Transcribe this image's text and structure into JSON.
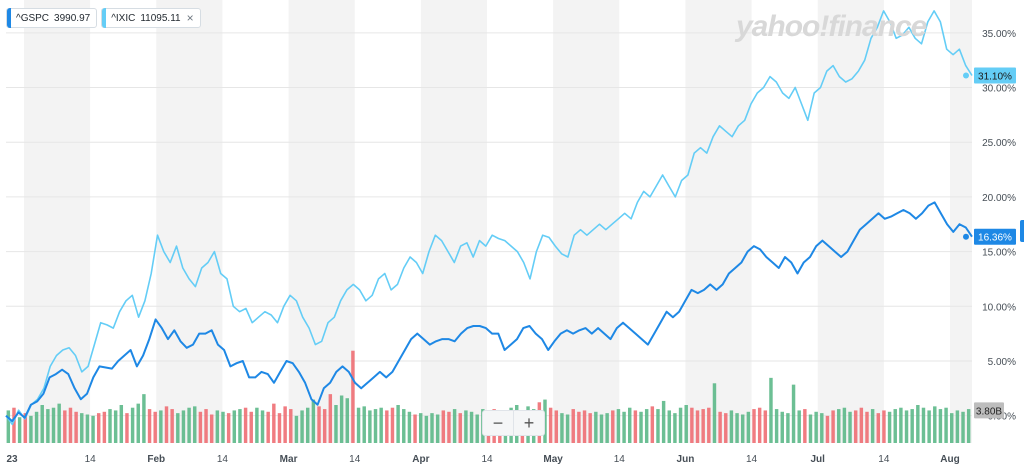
{
  "legend": [
    {
      "symbol": "^GSPC",
      "value": "3990.97",
      "color": "#1e88e5",
      "closable": false
    },
    {
      "symbol": "^IXIC",
      "value": "11095.11",
      "color": "#64cdf6",
      "closable": true,
      "close_label": "×"
    }
  ],
  "watermark": "yahoo!finance",
  "zoom": {
    "minus": "−",
    "plus": "+"
  },
  "chart_data": {
    "type": "line",
    "y_format": "percent",
    "ylim": [
      -2.5,
      38
    ],
    "y_ticks": [
      "0.00%",
      "5.00%",
      "10.00%",
      "15.00%",
      "20.00%",
      "25.00%",
      "30.00%",
      "35.00%"
    ],
    "x_ticks": [
      "23",
      "14",
      "Feb",
      "14",
      "Mar",
      "14",
      "Apr",
      "14",
      "May",
      "14",
      "Jun",
      "14",
      "Jul",
      "14",
      "Aug"
    ],
    "series": [
      {
        "name": "^IXIC",
        "color": "#64cdf6",
        "last_label": "31.10%",
        "values": [
          0.0,
          -0.8,
          0.5,
          -0.3,
          1.0,
          1.5,
          2.5,
          4.5,
          5.5,
          6.0,
          6.2,
          5.5,
          4.0,
          4.5,
          6.5,
          8.5,
          8.3,
          8.0,
          9.5,
          10.5,
          11.0,
          9.0,
          10.5,
          13.0,
          16.5,
          15.0,
          14.0,
          15.5,
          13.5,
          12.5,
          11.8,
          13.5,
          14.0,
          15.0,
          13.0,
          12.5,
          10.0,
          9.5,
          9.8,
          8.5,
          9.0,
          9.5,
          9.2,
          8.5,
          10.0,
          11.0,
          10.5,
          9.0,
          8.0,
          6.5,
          6.8,
          8.5,
          9.0,
          10.5,
          11.5,
          12.0,
          11.5,
          10.5,
          11.0,
          12.5,
          13.0,
          11.5,
          12.0,
          13.5,
          14.5,
          14.0,
          13.0,
          15.0,
          16.5,
          16.0,
          15.0,
          14.0,
          15.5,
          15.8,
          14.5,
          16.0,
          15.5,
          16.5,
          16.2,
          16.0,
          15.5,
          15.0,
          14.0,
          12.5,
          15.0,
          16.5,
          16.3,
          15.5,
          14.8,
          14.5,
          16.5,
          17.0,
          16.5,
          17.0,
          17.5,
          17.0,
          17.5,
          18.0,
          18.5,
          18.0,
          19.5,
          20.5,
          20.0,
          21.0,
          22.0,
          21.0,
          20.0,
          21.5,
          22.0,
          24.0,
          24.5,
          24.0,
          25.5,
          26.5,
          26.0,
          25.5,
          26.5,
          27.0,
          28.5,
          29.5,
          30.0,
          31.0,
          30.5,
          29.5,
          29.0,
          30.0,
          28.5,
          27.0,
          29.5,
          30.0,
          31.5,
          32.0,
          31.0,
          30.5,
          30.8,
          31.5,
          32.5,
          34.5,
          35.5,
          37.0,
          36.0,
          34.5,
          34.8,
          35.5,
          34.5,
          34.0,
          36.0,
          37.0,
          36.0,
          33.5,
          33.0,
          33.5,
          32.0,
          31.1
        ]
      },
      {
        "name": "^GSPC",
        "color": "#1e88e5",
        "last_label": "16.36%",
        "values": [
          0.0,
          -0.5,
          0.3,
          -0.2,
          1.0,
          1.3,
          2.0,
          3.5,
          3.8,
          4.2,
          3.8,
          2.5,
          1.5,
          2.0,
          3.5,
          4.5,
          4.4,
          4.3,
          5.0,
          5.5,
          6.0,
          4.5,
          5.5,
          7.0,
          8.8,
          8.0,
          7.0,
          7.8,
          6.8,
          6.2,
          6.5,
          7.5,
          7.5,
          7.8,
          6.5,
          6.0,
          4.5,
          4.8,
          5.0,
          3.5,
          3.5,
          4.0,
          3.8,
          3.0,
          4.0,
          5.0,
          4.8,
          4.0,
          3.0,
          1.5,
          1.0,
          2.5,
          3.0,
          4.0,
          4.5,
          4.0,
          3.0,
          2.5,
          3.0,
          3.5,
          4.0,
          3.5,
          4.0,
          5.0,
          6.0,
          7.0,
          7.5,
          7.0,
          6.5,
          6.8,
          7.0,
          7.0,
          6.8,
          7.5,
          8.0,
          8.2,
          8.2,
          8.0,
          7.5,
          7.5,
          6.0,
          6.5,
          7.0,
          8.0,
          8.2,
          7.5,
          7.0,
          6.0,
          6.8,
          7.5,
          7.8,
          7.5,
          7.8,
          8.0,
          7.5,
          8.0,
          7.5,
          7.0,
          8.0,
          8.5,
          8.0,
          7.5,
          7.0,
          6.5,
          7.5,
          8.5,
          9.5,
          9.0,
          9.5,
          10.5,
          11.5,
          11.2,
          11.5,
          12.0,
          11.5,
          12.0,
          13.0,
          13.5,
          14.0,
          15.0,
          15.5,
          15.2,
          14.5,
          14.0,
          13.5,
          14.5,
          14.0,
          13.0,
          14.0,
          14.5,
          15.5,
          16.0,
          15.5,
          15.0,
          14.5,
          15.0,
          16.0,
          17.0,
          17.5,
          18.0,
          18.5,
          18.0,
          18.2,
          18.5,
          18.8,
          18.5,
          18.0,
          18.5,
          19.2,
          19.5,
          18.5,
          17.5,
          16.8,
          17.5,
          17.2,
          16.36
        ]
      }
    ],
    "volume": {
      "label": "3.80B",
      "values": [
        2.4,
        2.6,
        1.9,
        2.2,
        2.0,
        2.3,
        2.8,
        2.5,
        2.6,
        2.9,
        2.4,
        2.6,
        2.3,
        2.2,
        2.1,
        2.0,
        2.2,
        2.3,
        2.5,
        2.4,
        2.8,
        2.2,
        2.6,
        2.9,
        3.6,
        2.5,
        2.3,
        2.4,
        2.7,
        2.5,
        2.2,
        2.4,
        2.6,
        2.7,
        2.3,
        2.5,
        2.1,
        2.4,
        2.3,
        2.2,
        2.4,
        2.5,
        2.6,
        2.3,
        2.6,
        2.4,
        2.3,
        2.9,
        2.2,
        2.7,
        2.5,
        2.0,
        2.4,
        2.6,
        3.2,
        2.7,
        2.5,
        3.6,
        2.8,
        3.5,
        3.3,
        6.8,
        2.6,
        2.7,
        2.4,
        2.5,
        2.6,
        2.4,
        2.6,
        2.8,
        2.5,
        2.3,
        2.1,
        2.2,
        2.0,
        2.2,
        2.1,
        2.4,
        2.3,
        2.5,
        2.2,
        2.4,
        2.3,
        2.1,
        2.5,
        2.3,
        2.5,
        2.1,
        2.4,
        2.6,
        2.8,
        2.4,
        2.7,
        2.5,
        3.0,
        3.2,
        2.6,
        2.4,
        2.2,
        2.1,
        2.5,
        2.3,
        2.4,
        2.2,
        2.3,
        2.1,
        2.2,
        2.4,
        2.5,
        2.3,
        2.6,
        2.4,
        2.3,
        2.5,
        2.7,
        2.5,
        3.1,
        2.4,
        2.2,
        2.6,
        2.8,
        2.6,
        2.4,
        2.5,
        2.6,
        4.4,
        2.3,
        2.2,
        2.4,
        2.2,
        2.1,
        2.3,
        2.5,
        2.6,
        2.4,
        4.8,
        2.5,
        2.3,
        2.2,
        4.3,
        2.4,
        2.5,
        2.1,
        2.3,
        2.2,
        2.0,
        2.4,
        2.5,
        2.6,
        2.3,
        2.4,
        2.6,
        2.3,
        2.5,
        2.2,
        2.4,
        2.3,
        2.5,
        2.6,
        2.4,
        2.5,
        2.8,
        2.6,
        2.4,
        2.7,
        2.5,
        2.6,
        2.2,
        2.4,
        2.3,
        2.5
      ]
    }
  }
}
